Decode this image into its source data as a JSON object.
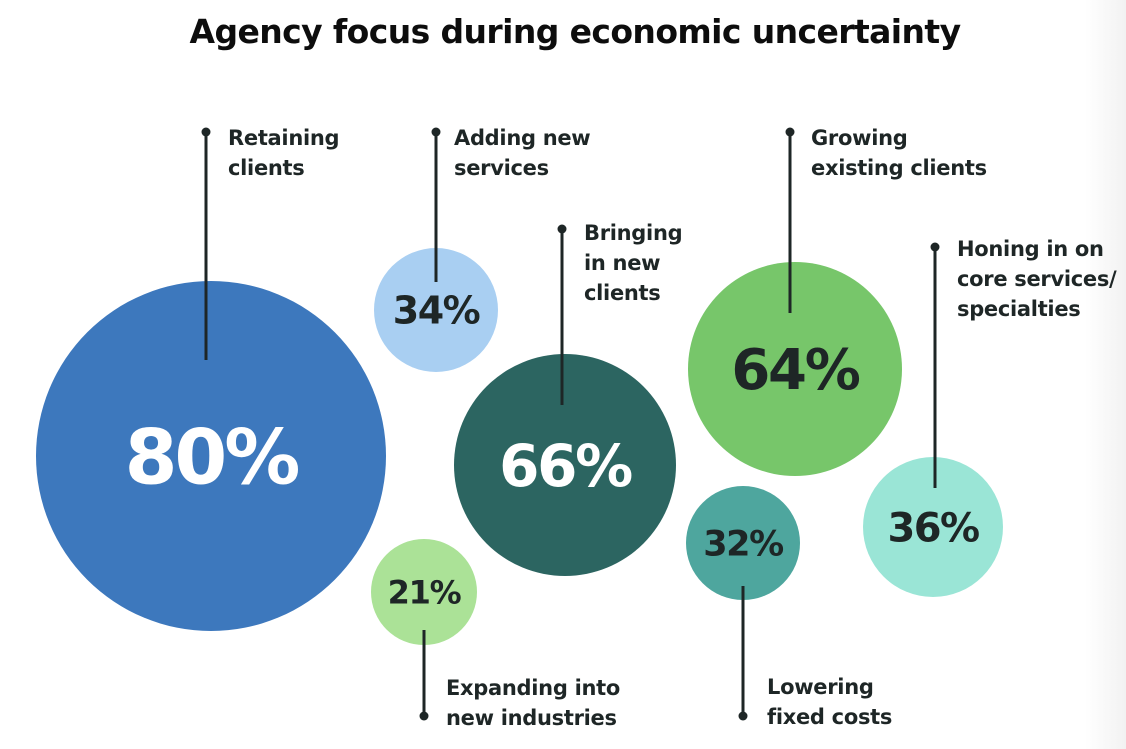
{
  "chart_data": {
    "type": "bubble",
    "title": "Agency focus during economic uncertainty",
    "unit": "%",
    "series": [
      {
        "name": "Retaining clients",
        "label_lines": [
          "Retaining",
          "clients"
        ],
        "value": 80,
        "value_label": "80%",
        "color": "#3d78bd",
        "text_color": "#ffffff",
        "leader": "up"
      },
      {
        "name": "Adding new services",
        "label_lines": [
          "Adding new",
          "services"
        ],
        "value": 34,
        "value_label": "34%",
        "color": "#a9cff2",
        "text_color": "#1e2626",
        "leader": "up"
      },
      {
        "name": "Expanding into new industries",
        "label_lines": [
          "Expanding into",
          "new industries"
        ],
        "value": 21,
        "value_label": "21%",
        "color": "#abe297",
        "text_color": "#1e2626",
        "leader": "down"
      },
      {
        "name": "Bringing in new clients",
        "label_lines": [
          "Bringing",
          "in new",
          "clients"
        ],
        "value": 66,
        "value_label": "66%",
        "color": "#2c6561",
        "text_color": "#ffffff",
        "leader": "up"
      },
      {
        "name": "Growing existing clients",
        "label_lines": [
          "Growing",
          "existing clients"
        ],
        "value": 64,
        "value_label": "64%",
        "color": "#77c66a",
        "text_color": "#1e2626",
        "leader": "up"
      },
      {
        "name": "Lowering fixed costs",
        "label_lines": [
          "Lowering",
          "fixed costs"
        ],
        "value": 32,
        "value_label": "32%",
        "color": "#4ea69e",
        "text_color": "#1e2626",
        "leader": "down"
      },
      {
        "name": "Honing in on core services/specialties",
        "label_lines": [
          "Honing in on",
          "core services/",
          "specialties"
        ],
        "value": 36,
        "value_label": "36%",
        "color": "#9ae5d6",
        "text_color": "#1e2626",
        "leader": "up"
      }
    ]
  }
}
